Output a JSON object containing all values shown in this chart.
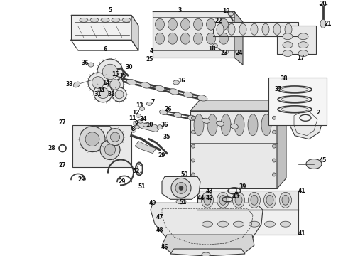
{
  "background_color": "#ffffff",
  "line_color": "#3a3a3a",
  "text_color": "#111111",
  "fig_width": 4.9,
  "fig_height": 3.6,
  "dpi": 100
}
